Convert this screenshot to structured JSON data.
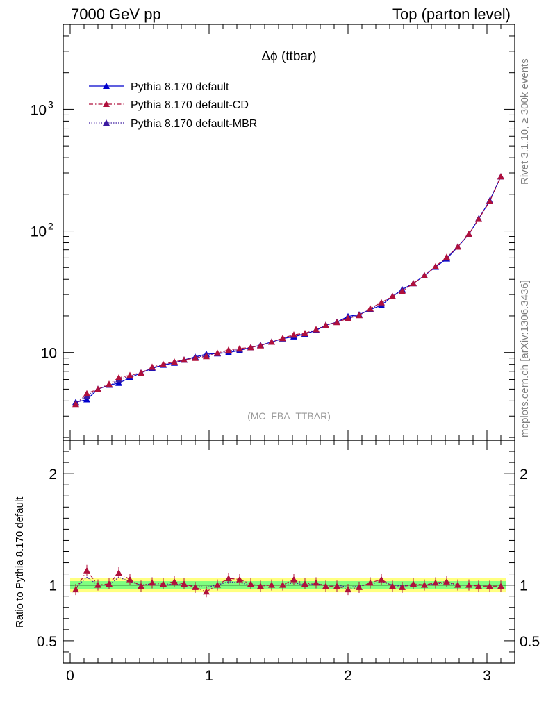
{
  "header": {
    "left": "7000 GeV pp",
    "right": "Top (parton level)"
  },
  "side_labels": {
    "rivet": "Rivet 3.1.10, ≥ 300k events",
    "mcplots": "mcplots.cern.ch [arXiv:1306.3436]"
  },
  "colors": {
    "default": "#0000cc",
    "cd": "#b0103c",
    "mbr": "#3b1aa0",
    "band_outer": "#ffff80",
    "band_inner": "#80ff80"
  },
  "chart_data": [
    {
      "type": "line",
      "title": "Δϕ (ttbar)",
      "annotation": "(MC_FBA_TTBAR)",
      "ylabel": "",
      "xlabel": "",
      "yscale": "log",
      "xlim": [
        -0.05,
        3.2
      ],
      "ylim": [
        1.9,
        5000
      ],
      "ytick_labels": [
        {
          "value": 10,
          "label": "10"
        },
        {
          "value": 100,
          "label": "10",
          "exp": "2"
        },
        {
          "value": 1000,
          "label": "10",
          "exp": "3"
        }
      ],
      "legend_position": "top-left",
      "x": [
        0.04,
        0.12,
        0.2,
        0.28,
        0.35,
        0.43,
        0.51,
        0.59,
        0.67,
        0.75,
        0.82,
        0.9,
        0.98,
        1.06,
        1.14,
        1.22,
        1.3,
        1.37,
        1.45,
        1.53,
        1.61,
        1.69,
        1.77,
        1.84,
        1.92,
        2.0,
        2.08,
        2.16,
        2.24,
        2.32,
        2.39,
        2.47,
        2.55,
        2.63,
        2.71,
        2.79,
        2.87,
        2.94,
        3.02,
        3.1
      ],
      "series": [
        {
          "name": "Pythia 8.170 default",
          "color_key": "default",
          "line": "solid",
          "values": [
            3.9,
            4.1,
            5.0,
            5.4,
            5.6,
            6.2,
            6.8,
            7.4,
            7.9,
            8.2,
            8.7,
            9.2,
            9.7,
            9.8,
            10.0,
            10.4,
            11.0,
            11.5,
            12.2,
            13.0,
            13.5,
            14.2,
            15.2,
            16.8,
            17.8,
            19.8,
            20.5,
            22.5,
            24.5,
            29.0,
            33.0,
            37.0,
            43.0,
            50.5,
            59.0,
            74.0,
            94.0,
            126.0,
            178.0,
            280.0
          ]
        },
        {
          "name": "Pythia 8.170 default-CD",
          "color_key": "cd",
          "line": "dashdot",
          "values": [
            3.75,
            4.6,
            5.0,
            5.5,
            6.2,
            6.5,
            6.8,
            7.6,
            8.0,
            8.4,
            8.7,
            9.0,
            9.3,
            9.9,
            10.5,
            10.8,
            11.0,
            11.4,
            12.2,
            13.1,
            14.0,
            14.4,
            15.5,
            16.8,
            17.7,
            19.1,
            20.2,
            23.0,
            25.8,
            29.0,
            32.0,
            37.0,
            43.0,
            51.0,
            61.0,
            74.0,
            94.5,
            125.0,
            175.0,
            280.0
          ]
        },
        {
          "name": "Pythia 8.170 default-MBR",
          "color_key": "mbr",
          "line": "dotted",
          "values": [
            3.85,
            4.4,
            5.0,
            5.4,
            6.0,
            6.4,
            6.8,
            7.5,
            7.95,
            8.3,
            8.7,
            9.1,
            9.5,
            9.85,
            10.3,
            10.6,
            11.0,
            11.45,
            12.2,
            13.0,
            13.8,
            14.3,
            15.4,
            16.8,
            17.75,
            19.4,
            20.3,
            22.8,
            25.2,
            29.0,
            32.5,
            37.0,
            43.0,
            50.8,
            60.0,
            74.0,
            94.2,
            125.5,
            176.5,
            280.0
          ]
        }
      ]
    },
    {
      "type": "line",
      "title": "",
      "ylabel": "Ratio to Pythia 8.170 default",
      "xlabel": "",
      "xlim": [
        -0.05,
        3.2
      ],
      "ylim": [
        0.3,
        2.3
      ],
      "xtick_labels": [
        "0",
        "1",
        "2",
        "3"
      ],
      "ytick_labels": [
        "0.5",
        "1",
        "2"
      ],
      "band_outer": 0.065,
      "band_inner": 0.035,
      "x": [
        0.04,
        0.12,
        0.2,
        0.28,
        0.35,
        0.43,
        0.51,
        0.59,
        0.67,
        0.75,
        0.82,
        0.9,
        0.98,
        1.06,
        1.14,
        1.22,
        1.3,
        1.37,
        1.45,
        1.53,
        1.61,
        1.69,
        1.77,
        1.84,
        1.92,
        2.0,
        2.08,
        2.16,
        2.24,
        2.32,
        2.39,
        2.47,
        2.55,
        2.63,
        2.71,
        2.79,
        2.87,
        2.94,
        3.02,
        3.1
      ],
      "series": [
        {
          "name": "Pythia 8.170 default-CD",
          "color_key": "cd",
          "line": "dashdot",
          "values": [
            0.96,
            1.13,
            1.0,
            1.01,
            1.11,
            1.05,
            0.99,
            1.02,
            1.01,
            1.03,
            1.01,
            0.98,
            0.94,
            1.0,
            1.06,
            1.05,
            1.01,
            0.99,
            1.0,
            1.0,
            1.05,
            1.01,
            1.02,
            0.99,
            0.99,
            0.96,
            0.98,
            1.02,
            1.05,
            0.99,
            0.98,
            1.01,
            1.0,
            1.02,
            1.03,
            1.0,
            1.0,
            0.99,
            0.99,
            0.99
          ]
        },
        {
          "name": "Pythia 8.170 default-MBR",
          "color_key": "mbr",
          "line": "dotted",
          "values": [
            0.98,
            1.07,
            1.0,
            1.0,
            1.07,
            1.03,
            1.0,
            1.01,
            1.0,
            1.01,
            1.0,
            0.99,
            0.98,
            1.0,
            1.03,
            1.02,
            1.0,
            1.0,
            1.0,
            1.0,
            1.02,
            1.0,
            1.01,
            1.0,
            1.0,
            0.98,
            0.99,
            1.01,
            1.03,
            1.0,
            0.99,
            1.0,
            1.0,
            1.01,
            1.02,
            1.0,
            1.0,
            1.0,
            1.0,
            1.0
          ]
        }
      ]
    }
  ]
}
